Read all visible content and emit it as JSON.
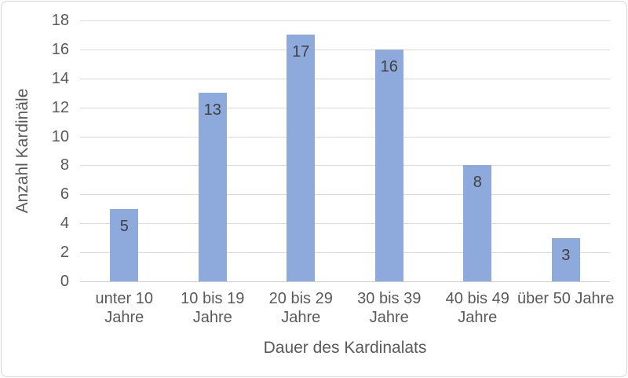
{
  "chart_data": {
    "type": "bar",
    "title": "",
    "xlabel": "Dauer des Kardinalats",
    "ylabel": "Anzahl Kardinäle",
    "categories": [
      "unter 10\nJahre",
      "10 bis 19\nJahre",
      "20 bis 29\nJahre",
      "30 bis 39\nJahre",
      "40 bis 49\nJahre",
      "über 50 Jahre"
    ],
    "values": [
      5,
      13,
      17,
      16,
      8,
      3
    ],
    "data_labels": [
      5,
      13,
      17,
      16,
      8,
      3
    ],
    "data_label_position": "inside-end",
    "ylim": [
      0,
      18
    ],
    "ytick_step": 2,
    "ytick_labels": [
      "0",
      "2",
      "4",
      "6",
      "8",
      "10",
      "12",
      "14",
      "16",
      "18"
    ],
    "grid": "horizontal",
    "legend": "none",
    "colors": {
      "bar": "#8EA9DB",
      "gridline": "#D9D9D9",
      "axis_line": "#CFCFCF",
      "tick_text": "#595959",
      "axis_title_text": "#595959",
      "data_label_text": "#404040",
      "chart_border": "#D6D6D6",
      "background": "#FFFFFF"
    }
  }
}
